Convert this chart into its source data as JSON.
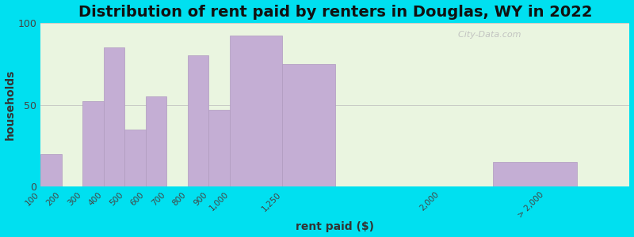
{
  "title": "Distribution of rent paid by renters in Douglas, WY in 2022",
  "xlabel": "rent paid ($)",
  "ylabel": "households",
  "bar_color": "#c4aed4",
  "bar_edge_color": "#b09ac0",
  "values": [
    20,
    52,
    85,
    35,
    55,
    0,
    80,
    47,
    92,
    75,
    0,
    15
  ],
  "left_edges": [
    100,
    300,
    400,
    500,
    600,
    700,
    800,
    900,
    1000,
    1250,
    2000,
    2250
  ],
  "widths": [
    100,
    100,
    100,
    100,
    100,
    100,
    100,
    100,
    250,
    250,
    250,
    400
  ],
  "xtick_locs": [
    100,
    200,
    300,
    400,
    500,
    600,
    700,
    800,
    900,
    1000,
    1250,
    2000,
    2500
  ],
  "xtick_labels": [
    "100",
    "200",
    "300",
    "400",
    "500",
    "600",
    "700",
    "800",
    "900",
    "1,000",
    "1,250",
    "2,000",
    "> 2,000"
  ],
  "xlim": [
    100,
    2900
  ],
  "ylim": [
    0,
    100
  ],
  "yticks": [
    0,
    50,
    100
  ],
  "bg_outer": "#00e0f0",
  "bg_inner": "#eaf5e0",
  "title_fontsize": 14,
  "axis_label_fontsize": 10,
  "tick_fontsize": 7.5,
  "watermark": "  City-Data.com"
}
